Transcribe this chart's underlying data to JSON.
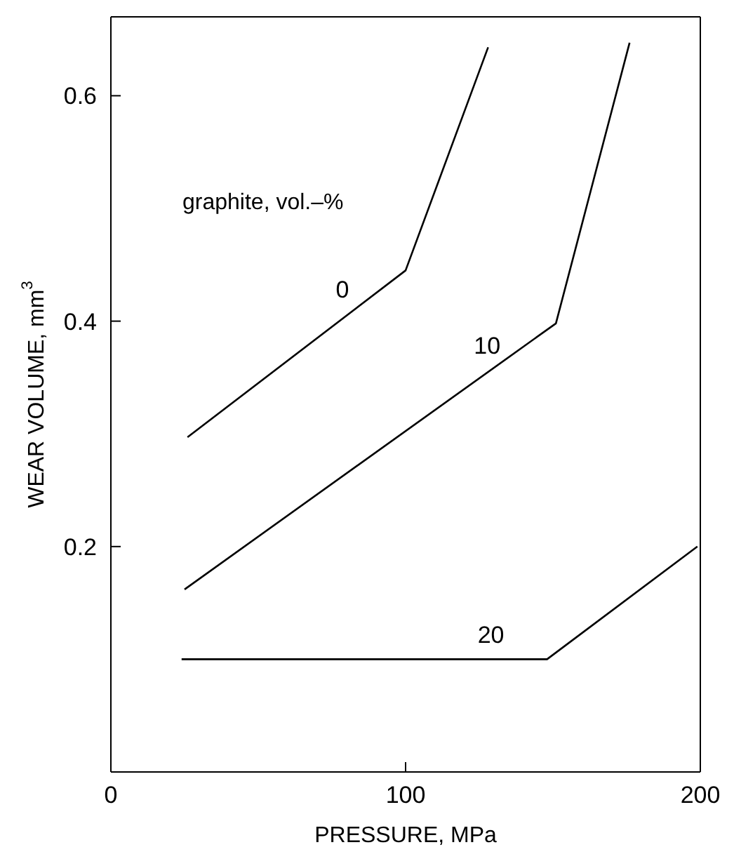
{
  "chart_data": {
    "type": "line",
    "xlabel": "PRESSURE, MPa",
    "ylabel": "WEAR VOLUME, mm$^{3}$",
    "legend_title": "graphite, vol.–%",
    "xlim": [
      0,
      200
    ],
    "xticks": [
      0,
      100,
      200
    ],
    "ylim": [
      0,
      0.67
    ],
    "yticks": [
      0.2,
      0.4,
      0.6
    ],
    "grid": false,
    "legend": false,
    "marker": "none",
    "line_style": "solid",
    "series": [
      {
        "name": "0",
        "color": "#000000",
        "x": [
          26,
          100,
          128
        ],
        "values": [
          0.297,
          0.445,
          0.643
        ]
      },
      {
        "name": "10",
        "color": "#000000",
        "x": [
          25,
          151,
          176
        ],
        "values": [
          0.162,
          0.398,
          0.647
        ]
      },
      {
        "name": "20",
        "color": "#000000",
        "x": [
          24,
          148,
          199
        ],
        "values": [
          0.1,
          0.1,
          0.2
        ]
      }
    ]
  }
}
